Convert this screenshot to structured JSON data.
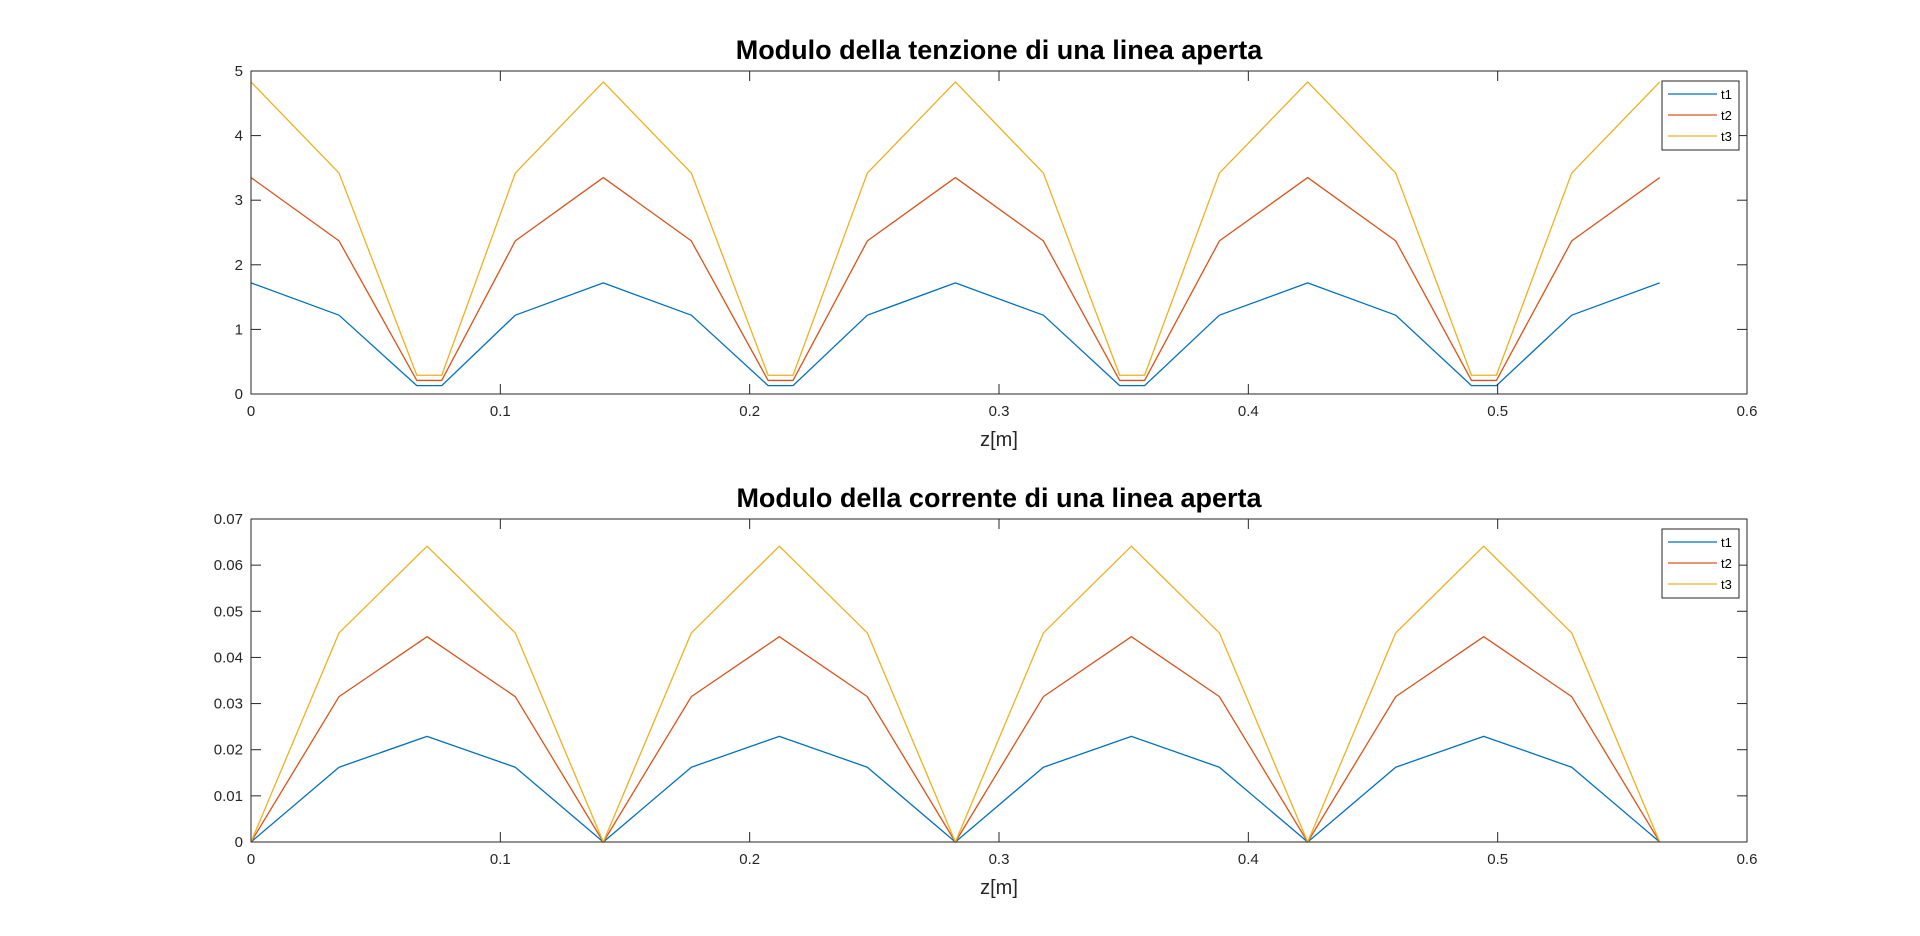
{
  "chart_data": [
    {
      "type": "line",
      "title": "Modulo della tenzione di una linea aperta",
      "xlabel": "z[m]",
      "ylabel": "",
      "xlim": [
        0,
        0.6
      ],
      "ylim": [
        0,
        5
      ],
      "xticks": [
        0,
        0.1,
        0.2,
        0.3,
        0.4,
        0.5,
        0.6
      ],
      "xtick_labels": [
        "0",
        "0.1",
        "0.2",
        "0.3",
        "0.4",
        "0.5",
        "0.6"
      ],
      "yticks": [
        0,
        1,
        2,
        3,
        4,
        5
      ],
      "ytick_labels": [
        "0",
        "1",
        "2",
        "3",
        "4",
        "5"
      ],
      "grid": false,
      "box": true,
      "legend_position": "top-right",
      "x": [
        0,
        0.0353,
        0.0665,
        0.0715,
        0.0765,
        0.106,
        0.1413,
        0.1766,
        0.2074,
        0.2124,
        0.2174,
        0.2472,
        0.2825,
        0.3178,
        0.3484,
        0.3534,
        0.3584,
        0.3884,
        0.4238,
        0.4591,
        0.4895,
        0.4945,
        0.4995,
        0.5297,
        0.565
      ],
      "series": [
        {
          "name": "t1",
          "color": "#0072BD",
          "values": [
            1.72,
            1.22,
            0.13,
            0.13,
            0.13,
            1.22,
            1.72,
            1.22,
            0.13,
            0.13,
            0.13,
            1.22,
            1.72,
            1.22,
            0.13,
            0.13,
            0.13,
            1.22,
            1.72,
            1.22,
            0.13,
            0.13,
            0.13,
            1.22,
            1.72
          ]
        },
        {
          "name": "t2",
          "color": "#D95319",
          "values": [
            3.35,
            2.37,
            0.21,
            0.21,
            0.21,
            2.37,
            3.35,
            2.37,
            0.21,
            0.21,
            0.21,
            2.37,
            3.35,
            2.37,
            0.21,
            0.21,
            0.21,
            2.37,
            3.35,
            2.37,
            0.21,
            0.21,
            0.21,
            2.37,
            3.35
          ]
        },
        {
          "name": "t3",
          "color": "#EDB120",
          "values": [
            4.83,
            3.42,
            0.29,
            0.29,
            0.29,
            3.42,
            4.83,
            3.42,
            0.29,
            0.29,
            0.29,
            3.42,
            4.83,
            3.42,
            0.29,
            0.29,
            0.29,
            3.42,
            4.83,
            3.42,
            0.29,
            0.29,
            0.29,
            3.42,
            4.83
          ]
        }
      ]
    },
    {
      "type": "line",
      "title": "Modulo della corrente di una linea aperta",
      "xlabel": "z[m]",
      "ylabel": "",
      "xlim": [
        0,
        0.6
      ],
      "ylim": [
        0,
        0.07
      ],
      "xticks": [
        0,
        0.1,
        0.2,
        0.3,
        0.4,
        0.5,
        0.6
      ],
      "xtick_labels": [
        "0",
        "0.1",
        "0.2",
        "0.3",
        "0.4",
        "0.5",
        "0.6"
      ],
      "yticks": [
        0,
        0.01,
        0.02,
        0.03,
        0.04,
        0.05,
        0.06,
        0.07
      ],
      "ytick_labels": [
        "0",
        "0.01",
        "0.02",
        "0.03",
        "0.04",
        "0.05",
        "0.06",
        "0.07"
      ],
      "grid": false,
      "box": true,
      "legend_position": "top-right",
      "x": [
        0,
        0.0353,
        0.0706,
        0.106,
        0.1413,
        0.1766,
        0.2119,
        0.2472,
        0.2825,
        0.3178,
        0.3531,
        0.3884,
        0.4238,
        0.4591,
        0.4944,
        0.5297,
        0.565
      ],
      "series": [
        {
          "name": "t1",
          "color": "#0072BD",
          "values": [
            0,
            0.0162,
            0.0229,
            0.0162,
            0,
            0.0162,
            0.0229,
            0.0162,
            0,
            0.0162,
            0.0229,
            0.0162,
            0,
            0.0162,
            0.0229,
            0.0162,
            0
          ]
        },
        {
          "name": "t2",
          "color": "#D95319",
          "values": [
            0,
            0.0315,
            0.0445,
            0.0315,
            0,
            0.0315,
            0.0445,
            0.0315,
            0,
            0.0315,
            0.0445,
            0.0315,
            0,
            0.0315,
            0.0445,
            0.0315,
            0
          ]
        },
        {
          "name": "t3",
          "color": "#EDB120",
          "values": [
            0,
            0.0453,
            0.0641,
            0.0453,
            0,
            0.0453,
            0.0641,
            0.0453,
            0,
            0.0453,
            0.0641,
            0.0453,
            0,
            0.0453,
            0.0641,
            0.0453,
            0
          ]
        }
      ]
    }
  ]
}
